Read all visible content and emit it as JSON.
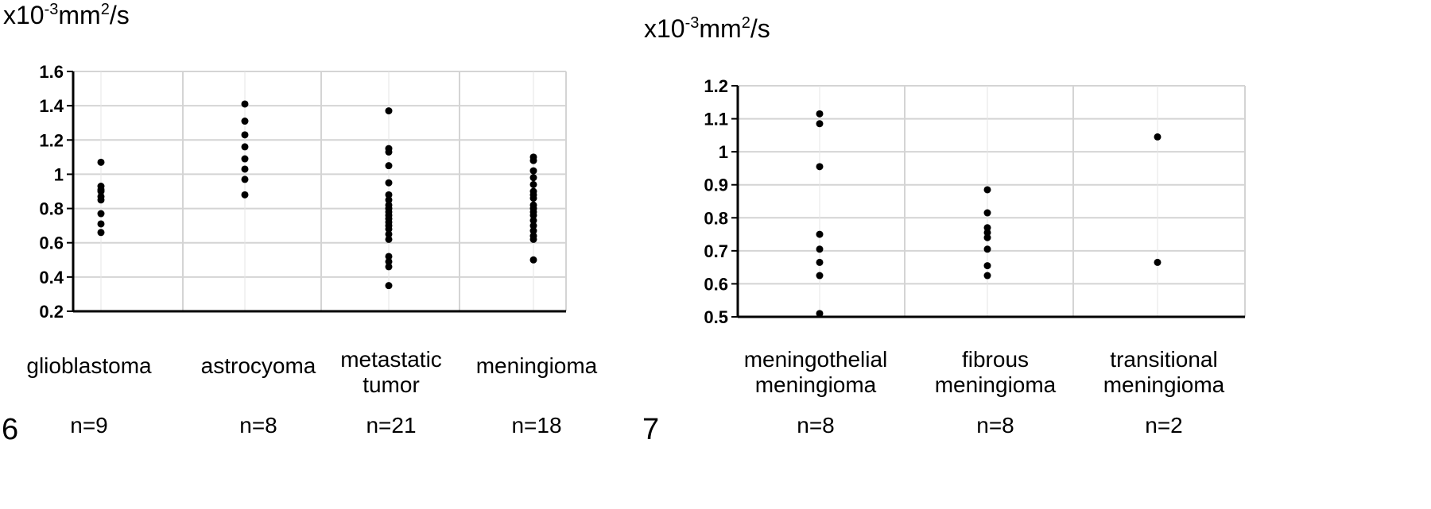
{
  "chart_data": [
    {
      "type": "scatter",
      "figure_number": "6",
      "ylabel": "x10-3mm2/s",
      "ylabel_parts": {
        "prefix": "x10",
        "exp1": "-3",
        "mid": "mm",
        "exp2": "2",
        "suffix": "/s"
      },
      "ylim": [
        0.2,
        1.6
      ],
      "yticks": [
        "1.6",
        "1.4",
        "1.2",
        "1",
        "0.8",
        "0.6",
        "0.4",
        "0.2"
      ],
      "grid": true,
      "categories": [
        {
          "lines": [
            "glioblastoma"
          ],
          "n": "n=9"
        },
        {
          "lines": [
            "astrocyoma"
          ],
          "n": "n=8"
        },
        {
          "lines": [
            "metastatic",
            "tumor"
          ],
          "n": "n=21"
        },
        {
          "lines": [
            "meningioma"
          ],
          "n": "n=18"
        }
      ],
      "series": [
        {
          "category": "glioblastoma",
          "values": [
            1.07,
            0.93,
            0.91,
            0.85,
            0.77,
            0.71,
            0.66,
            0.87,
            0.9
          ]
        },
        {
          "category": "astrocyoma",
          "values": [
            1.41,
            1.31,
            1.23,
            1.16,
            1.09,
            1.03,
            0.97,
            0.88
          ]
        },
        {
          "category": "metastatic tumor",
          "values": [
            1.37,
            1.15,
            1.13,
            1.05,
            0.95,
            0.88,
            0.85,
            0.82,
            0.78,
            0.74,
            0.72,
            0.7,
            0.68,
            0.65,
            0.52,
            0.49,
            0.46,
            0.35,
            0.8,
            0.76,
            0.62
          ]
        },
        {
          "category": "meningioma",
          "values": [
            1.1,
            1.08,
            1.02,
            0.98,
            0.94,
            0.9,
            0.86,
            0.82,
            0.8,
            0.78,
            0.76,
            0.73,
            0.7,
            0.67,
            0.64,
            0.62,
            0.5,
            0.88
          ]
        }
      ]
    },
    {
      "type": "scatter",
      "figure_number": "7",
      "ylabel": "x10-3mm2/s",
      "ylabel_parts": {
        "prefix": "x10",
        "exp1": "-3",
        "mid": "mm",
        "exp2": "2",
        "suffix": "/s"
      },
      "ylim": [
        0.5,
        1.2
      ],
      "yticks": [
        "1.2",
        "1.1",
        "1",
        "0.9",
        "0.8",
        "0.7",
        "0.6",
        "0.5"
      ],
      "grid": true,
      "categories": [
        {
          "lines": [
            "meningothelial",
            "meningioma"
          ],
          "n": "n=8"
        },
        {
          "lines": [
            "fibrous",
            "meningioma"
          ],
          "n": "n=8"
        },
        {
          "lines": [
            "transitional",
            "meningioma"
          ],
          "n": "n=2"
        }
      ],
      "series": [
        {
          "category": "meningothelial meningioma",
          "values": [
            1.115,
            1.085,
            0.955,
            0.75,
            0.705,
            0.665,
            0.625,
            0.51
          ]
        },
        {
          "category": "fibrous meningioma",
          "values": [
            0.885,
            0.815,
            0.77,
            0.755,
            0.74,
            0.705,
            0.655,
            0.625
          ]
        },
        {
          "category": "transitional meningioma",
          "values": [
            1.045,
            0.665
          ]
        }
      ]
    }
  ]
}
